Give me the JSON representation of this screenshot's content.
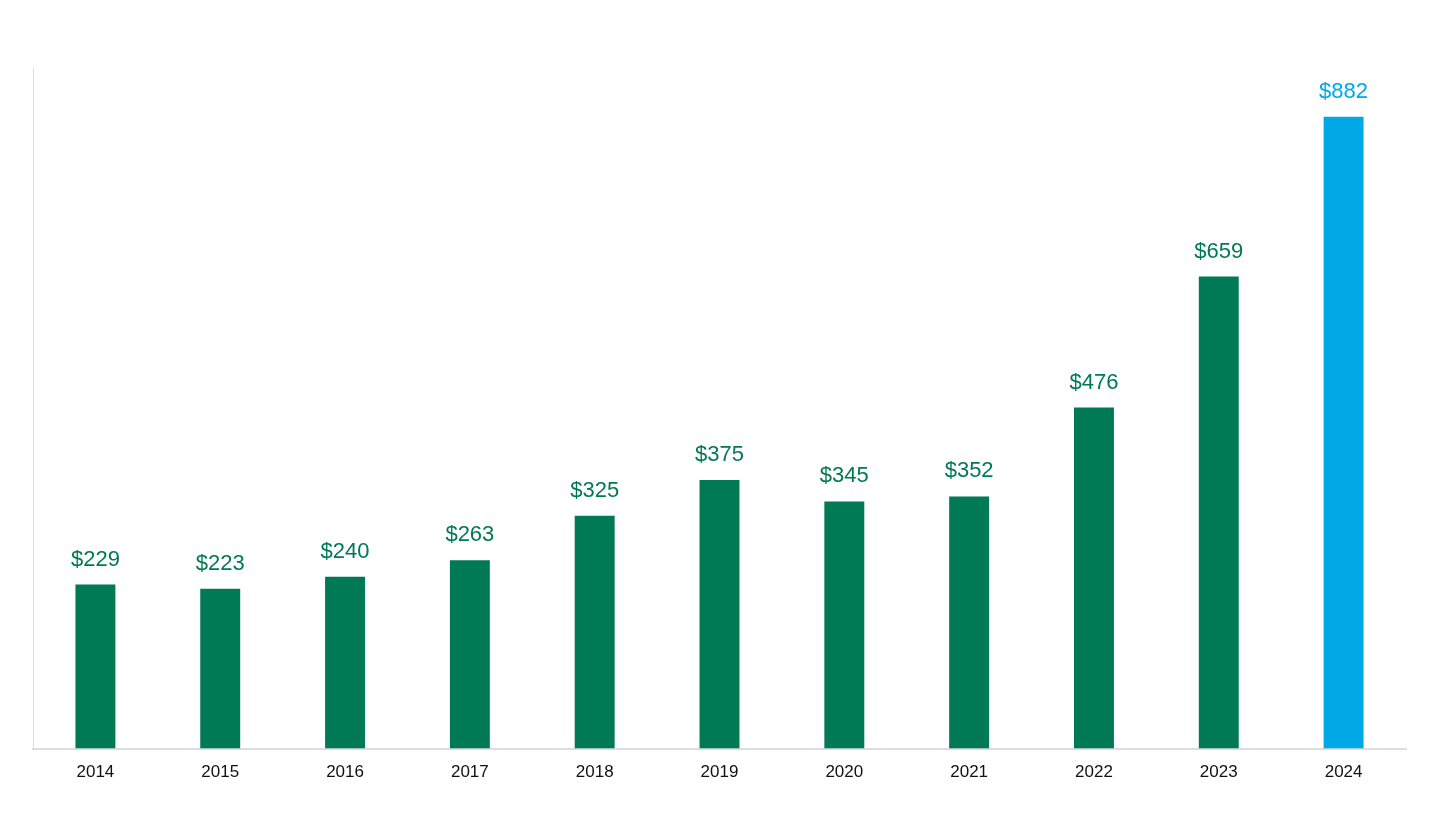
{
  "chart_data": {
    "type": "bar",
    "categories": [
      "2014",
      "2015",
      "2016",
      "2017",
      "2018",
      "2019",
      "2020",
      "2021",
      "2022",
      "2023",
      "2024"
    ],
    "values": [
      229,
      223,
      240,
      263,
      325,
      375,
      345,
      352,
      476,
      659,
      882
    ],
    "value_labels": [
      "$229",
      "$223",
      "$240",
      "$263",
      "$325",
      "$375",
      "$345",
      "$352",
      "$476",
      "$659",
      "$882"
    ],
    "colors": [
      "#007a53",
      "#007a53",
      "#007a53",
      "#007a53",
      "#007a53",
      "#007a53",
      "#007a53",
      "#007a53",
      "#007a53",
      "#007a53",
      "#00a9e6"
    ],
    "ylim": [
      0,
      950
    ],
    "yticks": [],
    "grid": false,
    "data_labels": true,
    "tick_labels": "x"
  }
}
